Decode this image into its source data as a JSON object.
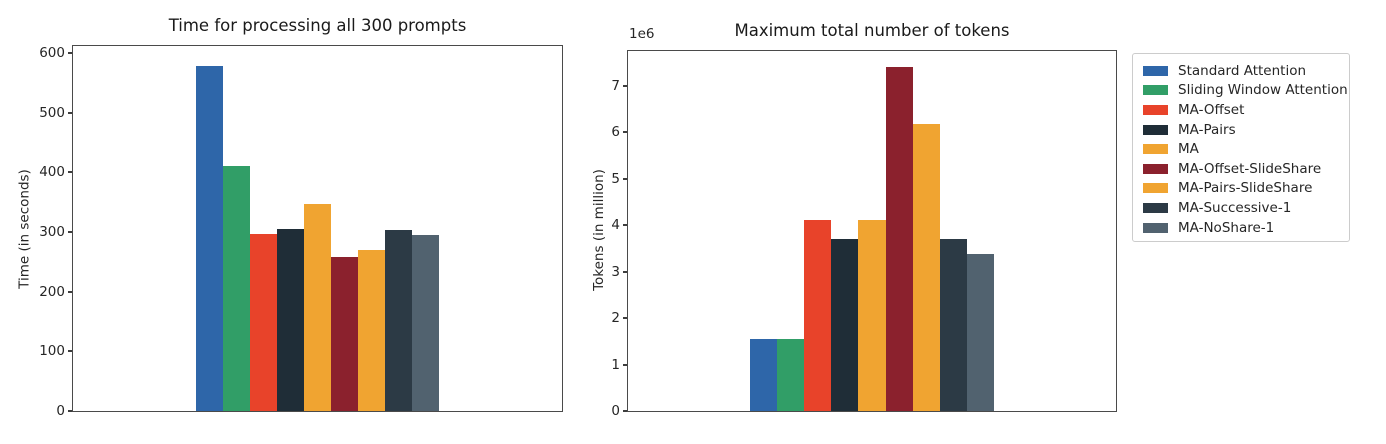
{
  "figure": {
    "background": "#ffffff"
  },
  "palette": {
    "blue": "#2e66a9",
    "green": "#319e67",
    "red": "#e8432a",
    "dark_navy": "#1f2d37",
    "orange": "#f0a431",
    "dark_red": "#8b212d",
    "charcoal": "#2c3a45",
    "slate_gray": "#51626f"
  },
  "chart_data": [
    {
      "type": "bar",
      "title": "Time for processing all 300 prompts",
      "xlabel": "",
      "ylabel": "Time (in seconds)",
      "offset_text": "",
      "ylim": [
        0,
        612
      ],
      "yticks": [
        0,
        100,
        200,
        300,
        400,
        500,
        600
      ],
      "grid": false,
      "xtick_labels": [],
      "bar_group_width_frac": 0.495,
      "series": [
        {
          "name": "Standard Attention",
          "color": "#2e66a9",
          "value": 578
        },
        {
          "name": "Sliding Window Attention",
          "color": "#319e67",
          "value": 410
        },
        {
          "name": "MA-Offset",
          "color": "#e8432a",
          "value": 297
        },
        {
          "name": "MA-Pairs",
          "color": "#1f2d37",
          "value": 306
        },
        {
          "name": "MA",
          "color": "#f0a431",
          "value": 347
        },
        {
          "name": "MA-Offset-SlideShare",
          "color": "#8b212d",
          "value": 258
        },
        {
          "name": "MA-Pairs-SlideShare",
          "color": "#f0a431",
          "value": 270
        },
        {
          "name": "MA-Successive-1",
          "color": "#2c3a45",
          "value": 304
        },
        {
          "name": "MA-NoShare-1",
          "color": "#51626f",
          "value": 295
        }
      ]
    },
    {
      "type": "bar",
      "title": "Maximum total number of tokens",
      "xlabel": "",
      "ylabel": "Tokens (in million)",
      "offset_text": "1e6",
      "unit_note": "y values are in millions (axis multiplier 1e6)",
      "ylim": [
        0,
        7.75
      ],
      "yticks": [
        0,
        1,
        2,
        3,
        4,
        5,
        6,
        7
      ],
      "grid": false,
      "xtick_labels": [],
      "bar_group_width_frac": 0.5,
      "series": [
        {
          "name": "Standard Attention",
          "color": "#2e66a9",
          "value": 1.54
        },
        {
          "name": "Sliding Window Attention",
          "color": "#319e67",
          "value": 1.54
        },
        {
          "name": "MA-Offset",
          "color": "#e8432a",
          "value": 4.12
        },
        {
          "name": "MA-Pairs",
          "color": "#1f2d37",
          "value": 3.7
        },
        {
          "name": "MA",
          "color": "#f0a431",
          "value": 4.12
        },
        {
          "name": "MA-Offset-SlideShare",
          "color": "#8b212d",
          "value": 7.4
        },
        {
          "name": "MA-Pairs-SlideShare",
          "color": "#f0a431",
          "value": 6.18
        },
        {
          "name": "MA-Successive-1",
          "color": "#2c3a45",
          "value": 3.7
        },
        {
          "name": "MA-NoShare-1",
          "color": "#51626f",
          "value": 3.37
        }
      ]
    }
  ],
  "legend": {
    "position": "outside-right",
    "entries": [
      {
        "label": "Standard Attention",
        "color": "#2e66a9"
      },
      {
        "label": "Sliding Window Attention",
        "color": "#319e67"
      },
      {
        "label": "MA-Offset",
        "color": "#e8432a"
      },
      {
        "label": "MA-Pairs",
        "color": "#1f2d37"
      },
      {
        "label": "MA",
        "color": "#f0a431"
      },
      {
        "label": "MA-Offset-SlideShare",
        "color": "#8b212d"
      },
      {
        "label": "MA-Pairs-SlideShare",
        "color": "#f0a431"
      },
      {
        "label": "MA-Successive-1",
        "color": "#2c3a45"
      },
      {
        "label": "MA-NoShare-1",
        "color": "#51626f"
      }
    ]
  }
}
